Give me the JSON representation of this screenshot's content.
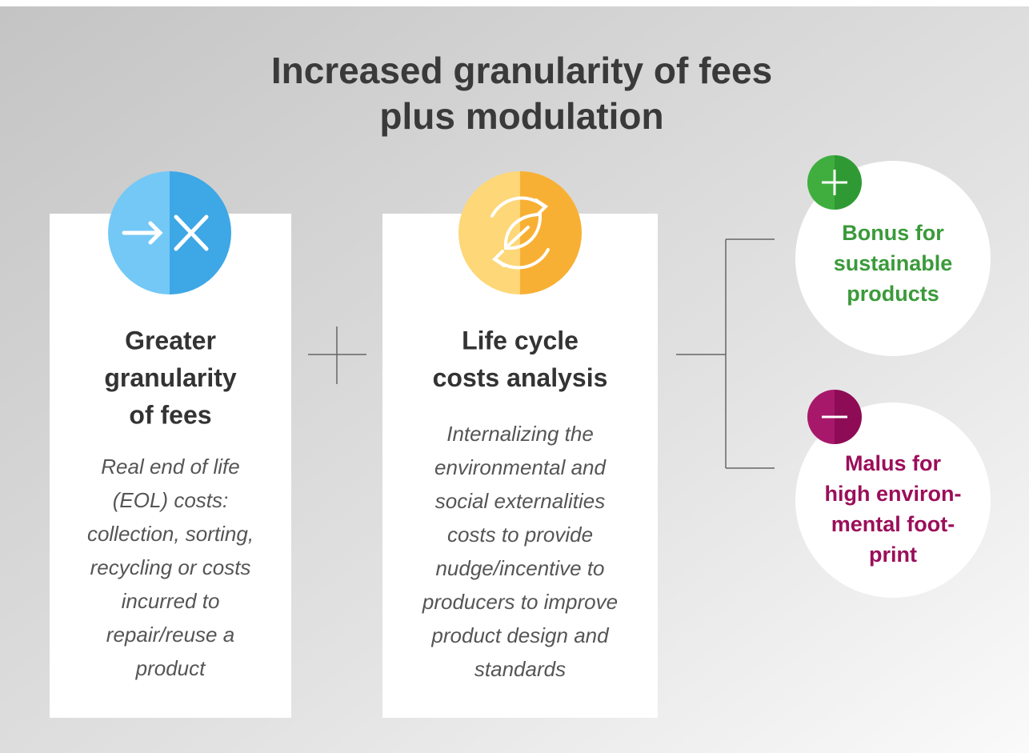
{
  "title": [
    "Increased granularity of fees",
    "plus modulation"
  ],
  "cards": [
    {
      "heading": [
        "Greater",
        "granularity",
        "of fees"
      ],
      "description": [
        "Real end of life",
        "(EOL) costs:",
        "collection, sorting,",
        "recycling or costs",
        "incurred to",
        "repair/reuse a",
        "product"
      ]
    },
    {
      "heading": [
        "Life cycle",
        "costs analysis"
      ],
      "description": [
        "Internalizing the",
        "environmental and",
        "social externalities",
        "costs to provide",
        "nudge/incentive to",
        "producers to improve",
        "product design and",
        "standards"
      ]
    }
  ],
  "outcomes": [
    {
      "label": [
        "Bonus for",
        "sustainable",
        "products"
      ]
    },
    {
      "label": [
        "Malus for",
        "high environ-",
        "mental foot-",
        "print"
      ]
    }
  ]
}
